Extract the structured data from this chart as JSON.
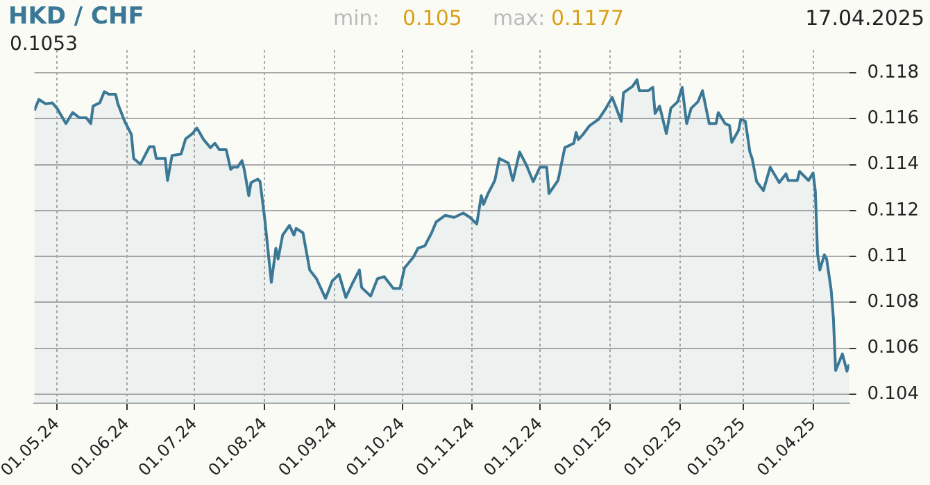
{
  "chart_data": {
    "type": "area",
    "title": "HKD / CHF",
    "annotations": [
      "min:",
      "0.105",
      "max:",
      "0.1177",
      "17.04.2025",
      "0.1053"
    ],
    "xlim": [
      "2024-04-21",
      "2025-04-17"
    ],
    "xticks": [
      {
        "value": "2024-05-01",
        "label": "01.05.24"
      },
      {
        "value": "2024-06-01",
        "label": "01.06.24"
      },
      {
        "value": "2024-07-01",
        "label": "01.07.24"
      },
      {
        "value": "2024-08-01",
        "label": "01.08.24"
      },
      {
        "value": "2024-09-01",
        "label": "01.09.24"
      },
      {
        "value": "2024-10-01",
        "label": "01.10.24"
      },
      {
        "value": "2024-11-01",
        "label": "01.11.24"
      },
      {
        "value": "2024-12-01",
        "label": "01.12.24"
      },
      {
        "value": "2025-01-01",
        "label": "01.01.25"
      },
      {
        "value": "2025-02-01",
        "label": "01.02.25"
      },
      {
        "value": "2025-03-01",
        "label": "01.03.25"
      },
      {
        "value": "2025-04-01",
        "label": "01.04.25"
      }
    ],
    "ylim": [
      0.1036,
      0.119
    ],
    "yticks": [
      0.104,
      0.106,
      0.108,
      0.11,
      0.112,
      0.114,
      0.116,
      0.118
    ],
    "grid": true,
    "legend": false,
    "x": [
      "2024-04-21",
      "2024-04-23",
      "2024-04-26",
      "2024-04-29",
      "2024-05-01",
      "2024-05-05",
      "2024-05-08",
      "2024-05-11",
      "2024-05-14",
      "2024-05-16",
      "2024-05-17",
      "2024-05-20",
      "2024-05-22",
      "2024-05-24",
      "2024-05-27",
      "2024-05-28",
      "2024-05-31",
      "2024-06-03",
      "2024-06-04",
      "2024-06-07",
      "2024-06-11",
      "2024-06-13",
      "2024-06-14",
      "2024-06-18",
      "2024-06-19",
      "2024-06-21",
      "2024-06-25",
      "2024-06-27",
      "2024-06-30",
      "2024-07-02",
      "2024-07-05",
      "2024-07-08",
      "2024-07-10",
      "2024-07-12",
      "2024-07-15",
      "2024-07-17",
      "2024-07-18",
      "2024-07-20",
      "2024-07-22",
      "2024-07-23",
      "2024-07-25",
      "2024-07-26",
      "2024-07-29",
      "2024-07-30",
      "2024-08-01",
      "2024-08-04",
      "2024-08-06",
      "2024-08-07",
      "2024-08-09",
      "2024-08-12",
      "2024-08-14",
      "2024-08-15",
      "2024-08-18",
      "2024-08-21",
      "2024-08-24",
      "2024-08-28",
      "2024-08-31",
      "2024-09-03",
      "2024-09-06",
      "2024-09-09",
      "2024-09-12",
      "2024-09-13",
      "2024-09-14",
      "2024-09-17",
      "2024-09-20",
      "2024-09-23",
      "2024-09-27",
      "2024-09-30",
      "2024-10-02",
      "2024-10-06",
      "2024-10-08",
      "2024-10-11",
      "2024-10-14",
      "2024-10-16",
      "2024-10-20",
      "2024-10-24",
      "2024-10-28",
      "2024-10-31",
      "2024-11-03",
      "2024-11-05",
      "2024-11-06",
      "2024-11-08",
      "2024-11-11",
      "2024-11-13",
      "2024-11-17",
      "2024-11-19",
      "2024-11-22",
      "2024-11-25",
      "2024-11-28",
      "2024-12-01",
      "2024-12-04",
      "2024-12-05",
      "2024-12-09",
      "2024-12-12",
      "2024-12-16",
      "2024-12-17",
      "2024-12-18",
      "2024-12-20",
      "2024-12-23",
      "2024-12-27",
      "2024-12-30",
      "2025-01-02",
      "2025-01-06",
      "2025-01-07",
      "2025-01-11",
      "2025-01-13",
      "2025-01-14",
      "2025-01-18",
      "2025-01-20",
      "2025-01-21",
      "2025-01-23",
      "2025-01-26",
      "2025-01-28",
      "2025-01-31",
      "2025-02-02",
      "2025-02-04",
      "2025-02-06",
      "2025-02-09",
      "2025-02-11",
      "2025-02-14",
      "2025-02-17",
      "2025-02-18",
      "2025-02-21",
      "2025-02-23",
      "2025-02-24",
      "2025-02-27",
      "2025-02-28",
      "2025-03-02",
      "2025-03-04",
      "2025-03-05",
      "2025-03-07",
      "2025-03-10",
      "2025-03-13",
      "2025-03-17",
      "2025-03-20",
      "2025-03-21",
      "2025-03-25",
      "2025-03-26",
      "2025-03-30",
      "2025-04-01",
      "2025-04-02",
      "2025-04-03",
      "2025-04-04",
      "2025-04-06",
      "2025-04-07",
      "2025-04-09",
      "2025-04-10",
      "2025-04-11",
      "2025-04-14",
      "2025-04-16",
      "2025-04-17"
    ],
    "series": [
      {
        "color": "#3b7896",
        "values": [
          0.11636,
          0.11684,
          0.11665,
          0.11669,
          0.11646,
          0.11579,
          0.11627,
          0.11604,
          0.11604,
          0.11579,
          0.11655,
          0.1167,
          0.11718,
          0.11707,
          0.11707,
          0.11665,
          0.11589,
          0.11531,
          0.11427,
          0.11402,
          0.11478,
          0.11478,
          0.11427,
          0.11427,
          0.11331,
          0.1144,
          0.11446,
          0.11512,
          0.11535,
          0.1156,
          0.11509,
          0.11474,
          0.11493,
          0.11465,
          0.11465,
          0.11379,
          0.11389,
          0.11389,
          0.11417,
          0.11379,
          0.11265,
          0.11322,
          0.11337,
          0.11326,
          0.1117,
          0.10887,
          0.11036,
          0.10989,
          0.11093,
          0.11135,
          0.11093,
          0.11122,
          0.11103,
          0.10941,
          0.10903,
          0.10817,
          0.10893,
          0.10922,
          0.10821,
          0.10884,
          0.10941,
          0.10865,
          0.10855,
          0.10827,
          0.10903,
          0.10912,
          0.10861,
          0.10861,
          0.1095,
          0.10998,
          0.11036,
          0.11046,
          0.11103,
          0.1115,
          0.11179,
          0.1117,
          0.11189,
          0.1117,
          0.11141,
          0.11265,
          0.11227,
          0.11274,
          0.11331,
          0.11427,
          0.11407,
          0.11331,
          0.11455,
          0.11398,
          0.11326,
          0.11389,
          0.11389,
          0.11274,
          0.11331,
          0.11474,
          0.11493,
          0.11541,
          0.11509,
          0.11531,
          0.1157,
          0.11598,
          0.11642,
          0.11693,
          0.11589,
          0.11713,
          0.11741,
          0.1177,
          0.11722,
          0.11722,
          0.11737,
          0.11623,
          0.11655,
          0.11535,
          0.11646,
          0.11674,
          0.11737,
          0.11579,
          0.11646,
          0.11674,
          0.11722,
          0.11579,
          0.11579,
          0.11627,
          0.11579,
          0.1157,
          0.11497,
          0.1155,
          0.11598,
          0.11589,
          0.11455,
          0.11427,
          0.11326,
          0.11287,
          0.11389,
          0.11322,
          0.1136,
          0.11331,
          0.11331,
          0.1137,
          0.11331,
          0.11364,
          0.11284,
          0.1101,
          0.10941,
          0.11007,
          0.10989,
          0.10855,
          0.10731,
          0.10503,
          0.10575,
          0.105,
          0.1053
        ]
      }
    ]
  }
}
